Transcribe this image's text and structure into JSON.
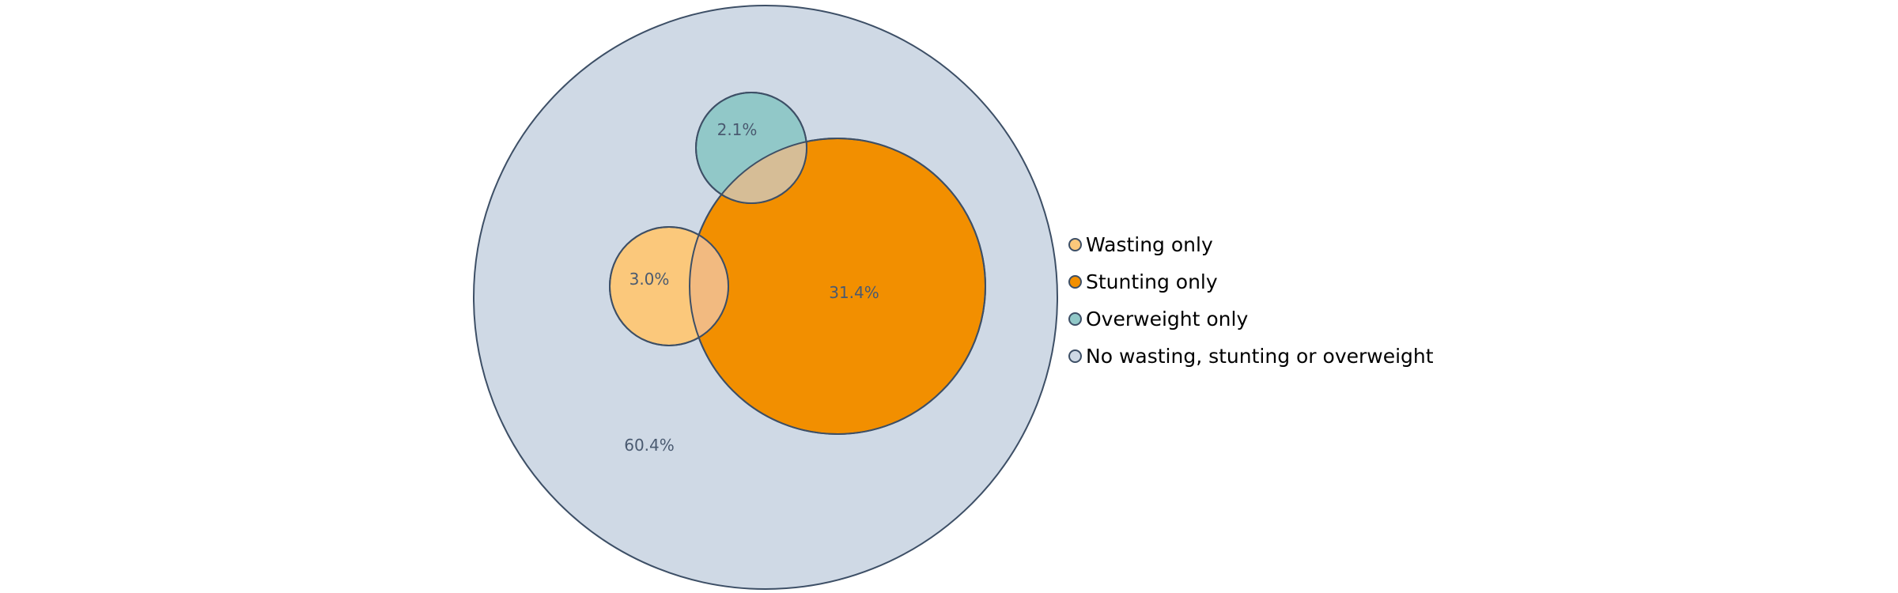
{
  "chart_data": {
    "type": "nested-circles",
    "series": [
      {
        "name": "No wasting, stunting or overweight",
        "value": 60.4,
        "label": "60.4%",
        "color": "#cfd9e5"
      },
      {
        "name": "Stunting only",
        "value": 31.4,
        "label": "31.4%",
        "color": "#f28f00"
      },
      {
        "name": "Wasting only",
        "value": 3.0,
        "label": "3.0%",
        "color": "#fbc87b"
      },
      {
        "name": "Overweight only",
        "value": 2.1,
        "label": "2.1%",
        "color": "#91c8c8"
      }
    ],
    "overlap_colors": {
      "wasting_stunting": "#f2ba80",
      "overweight_stunting": "#d6bd96"
    },
    "legend": {
      "position": "right",
      "items": [
        {
          "label": "Wasting only",
          "color": "#fbc87b"
        },
        {
          "label": "Stunting only",
          "color": "#f28f00"
        },
        {
          "label": "Overweight only",
          "color": "#91c8c8"
        },
        {
          "label": "No wasting, stunting or overweight",
          "color": "#cfd9e5"
        }
      ]
    },
    "stroke_color": "#3d4f66"
  }
}
